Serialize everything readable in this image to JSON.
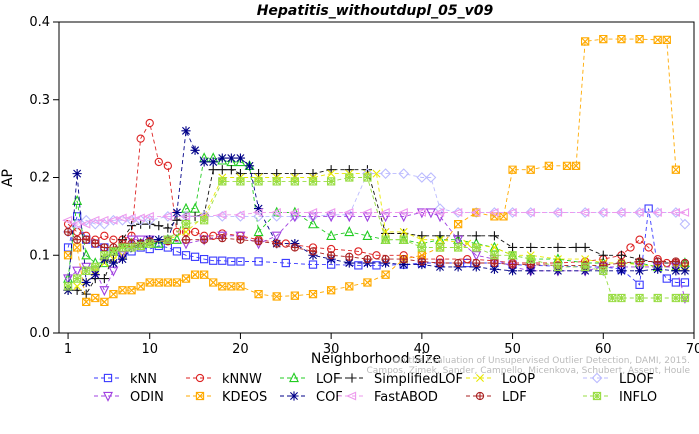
{
  "chart_data": {
    "type": "line",
    "title": "Hepatitis_withoutdupl_05_v09",
    "xlabel": "Neighborhood size",
    "ylabel": "AP",
    "xlim": [
      0,
      70
    ],
    "ylim": [
      0.0,
      0.4
    ],
    "xticks": [
      1,
      10,
      20,
      30,
      40,
      50,
      60,
      70
    ],
    "yticks": [
      0.0,
      0.1,
      0.2,
      0.3,
      0.4
    ],
    "grid": false,
    "legend_position": "bottom",
    "watermark": [
      "Campos, Zimek, Sander, Campello, Micenkova, Schubert, Assent, Houle",
      "On the Evaluation of Unsupervised Outlier Detection, DAMI, 2015."
    ],
    "series": [
      {
        "name": "kNN",
        "color": "#3a3aff",
        "marker": "square",
        "x": [
          1,
          2,
          3,
          4,
          5,
          6,
          7,
          8,
          9,
          10,
          11,
          12,
          13,
          14,
          15,
          16,
          17,
          18,
          19,
          20,
          22,
          25,
          28,
          30,
          33,
          35,
          38,
          40,
          42,
          45,
          48,
          50,
          52,
          55,
          58,
          60,
          62,
          64,
          65,
          66,
          67,
          68,
          69
        ],
        "y": [
          0.11,
          0.15,
          0.12,
          0.115,
          0.11,
          0.105,
          0.1,
          0.105,
          0.11,
          0.108,
          0.112,
          0.11,
          0.105,
          0.1,
          0.098,
          0.095,
          0.093,
          0.093,
          0.092,
          0.092,
          0.092,
          0.09,
          0.088,
          0.088,
          0.087,
          0.087,
          0.088,
          0.09,
          0.09,
          0.09,
          0.09,
          0.088,
          0.087,
          0.086,
          0.085,
          0.085,
          0.082,
          0.062,
          0.16,
          0.085,
          0.07,
          0.065,
          0.065
        ]
      },
      {
        "name": "kNNW",
        "color": "#dd2222",
        "marker": "circle",
        "x": [
          1,
          2,
          3,
          4,
          5,
          6,
          7,
          8,
          9,
          10,
          11,
          12,
          13,
          14,
          15,
          16,
          17,
          18,
          20,
          22,
          25,
          28,
          30,
          33,
          35,
          38,
          40,
          42,
          45,
          48,
          50,
          52,
          55,
          58,
          60,
          62,
          63,
          64,
          65,
          66,
          67,
          68,
          69
        ],
        "y": [
          0.14,
          0.13,
          0.125,
          0.12,
          0.125,
          0.12,
          0.12,
          0.125,
          0.25,
          0.27,
          0.22,
          0.215,
          0.13,
          0.13,
          0.13,
          0.125,
          0.125,
          0.128,
          0.125,
          0.12,
          0.115,
          0.11,
          0.108,
          0.105,
          0.1,
          0.1,
          0.095,
          0.095,
          0.095,
          0.093,
          0.09,
          0.09,
          0.09,
          0.092,
          0.095,
          0.1,
          0.11,
          0.12,
          0.11,
          0.095,
          0.09,
          0.09,
          0.09
        ]
      },
      {
        "name": "LOF",
        "color": "#22cc22",
        "marker": "triangle-up",
        "x": [
          1,
          2,
          3,
          4,
          5,
          6,
          7,
          8,
          9,
          10,
          11,
          12,
          13,
          14,
          15,
          16,
          17,
          18,
          19,
          20,
          21,
          22,
          24,
          26,
          28,
          30,
          32,
          34,
          36,
          38,
          40,
          42,
          44,
          46,
          48,
          50,
          52,
          55,
          58,
          60,
          62,
          64,
          66,
          68,
          69
        ],
        "y": [
          0.07,
          0.17,
          0.1,
          0.09,
          0.09,
          0.105,
          0.11,
          0.115,
          0.115,
          0.115,
          0.115,
          0.12,
          0.12,
          0.16,
          0.16,
          0.225,
          0.225,
          0.222,
          0.22,
          0.22,
          0.215,
          0.13,
          0.155,
          0.155,
          0.14,
          0.125,
          0.13,
          0.125,
          0.12,
          0.12,
          0.115,
          0.12,
          0.12,
          0.115,
          0.11,
          0.1,
          0.095,
          0.095,
          0.09,
          0.09,
          0.09,
          0.09,
          0.085,
          0.085,
          0.09
        ]
      },
      {
        "name": "SimplifiedLOF",
        "color": "#111111",
        "marker": "plus",
        "x": [
          1,
          2,
          3,
          4,
          5,
          6,
          7,
          8,
          9,
          10,
          11,
          12,
          13,
          14,
          15,
          16,
          17,
          18,
          19,
          20,
          22,
          24,
          26,
          28,
          30,
          32,
          34,
          36,
          38,
          40,
          42,
          44,
          46,
          48,
          50,
          52,
          55,
          57,
          58,
          60,
          62,
          64,
          66,
          68
        ],
        "y": [
          0.055,
          0.055,
          0.05,
          0.07,
          0.07,
          0.1,
          0.12,
          0.138,
          0.14,
          0.14,
          0.138,
          0.135,
          0.145,
          0.15,
          0.15,
          0.152,
          0.21,
          0.21,
          0.21,
          0.205,
          0.205,
          0.205,
          0.205,
          0.205,
          0.21,
          0.21,
          0.21,
          0.128,
          0.128,
          0.125,
          0.125,
          0.125,
          0.125,
          0.125,
          0.11,
          0.11,
          0.11,
          0.11,
          0.11,
          0.1,
          0.1,
          0.095,
          0.09,
          0.09
        ]
      },
      {
        "name": "LoOP",
        "color": "#e8e800",
        "marker": "x",
        "x": [
          1,
          2,
          3,
          4,
          5,
          6,
          7,
          8,
          9,
          10,
          12,
          14,
          16,
          18,
          20,
          22,
          24,
          26,
          28,
          30,
          32,
          34,
          35,
          36,
          38,
          40,
          42,
          45,
          48,
          50,
          52,
          55,
          58,
          60,
          62,
          64,
          66,
          68,
          69
        ],
        "y": [
          0.055,
          0.06,
          0.065,
          0.08,
          0.09,
          0.095,
          0.1,
          0.11,
          0.115,
          0.115,
          0.12,
          0.13,
          0.15,
          0.2,
          0.2,
          0.2,
          0.2,
          0.2,
          0.2,
          0.205,
          0.205,
          0.205,
          0.205,
          0.13,
          0.13,
          0.12,
          0.12,
          0.115,
          0.11,
          0.1,
          0.1,
          0.095,
          0.095,
          0.09,
          0.09,
          0.088,
          0.085,
          0.085,
          0.085
        ]
      },
      {
        "name": "LDOF",
        "color": "#bbbbff",
        "marker": "diamond",
        "x": [
          1,
          2,
          3,
          4,
          5,
          6,
          7,
          8,
          9,
          10,
          12,
          14,
          16,
          18,
          20,
          22,
          24,
          26,
          28,
          30,
          32,
          34,
          36,
          38,
          40,
          41,
          42,
          44,
          46,
          48,
          50,
          52,
          55,
          58,
          60,
          62,
          64,
          66,
          68,
          69
        ],
        "y": [
          0.13,
          0.14,
          0.145,
          0.14,
          0.14,
          0.145,
          0.145,
          0.145,
          0.145,
          0.145,
          0.15,
          0.15,
          0.15,
          0.15,
          0.15,
          0.15,
          0.15,
          0.15,
          0.15,
          0.152,
          0.152,
          0.205,
          0.205,
          0.205,
          0.2,
          0.2,
          0.16,
          0.155,
          0.155,
          0.155,
          0.155,
          0.155,
          0.155,
          0.155,
          0.155,
          0.155,
          0.155,
          0.155,
          0.155,
          0.14
        ]
      },
      {
        "name": "ODIN",
        "color": "#a040e0",
        "marker": "triangle-down",
        "x": [
          1,
          2,
          3,
          4,
          5,
          6,
          7,
          8,
          9,
          10,
          12,
          14,
          16,
          18,
          20,
          22,
          24,
          26,
          28,
          30,
          32,
          34,
          36,
          38,
          40,
          41,
          42,
          44,
          46,
          48,
          50,
          52,
          55,
          58,
          60,
          62,
          64,
          66,
          68,
          69
        ],
        "y": [
          0.07,
          0.08,
          0.085,
          0.08,
          0.055,
          0.08,
          0.1,
          0.12,
          0.12,
          0.12,
          0.12,
          0.115,
          0.12,
          0.125,
          0.125,
          0.115,
          0.125,
          0.15,
          0.15,
          0.15,
          0.15,
          0.15,
          0.15,
          0.15,
          0.155,
          0.155,
          0.15,
          0.12,
          0.1,
          0.095,
          0.085,
          0.08,
          0.08,
          0.08,
          0.085,
          0.085,
          0.085,
          0.085,
          0.085,
          0.045
        ]
      },
      {
        "name": "KDEOS",
        "color": "#ffaa00",
        "marker": "square-x",
        "x": [
          1,
          2,
          3,
          4,
          5,
          6,
          7,
          8,
          9,
          10,
          11,
          12,
          13,
          14,
          15,
          16,
          17,
          18,
          19,
          20,
          22,
          24,
          26,
          28,
          30,
          32,
          34,
          36,
          38,
          40,
          42,
          44,
          46,
          48,
          49,
          50,
          52,
          54,
          56,
          57,
          58,
          60,
          62,
          64,
          66,
          67,
          68
        ],
        "y": [
          0.1,
          0.11,
          0.04,
          0.045,
          0.04,
          0.05,
          0.055,
          0.055,
          0.06,
          0.065,
          0.065,
          0.065,
          0.065,
          0.07,
          0.075,
          0.075,
          0.065,
          0.06,
          0.06,
          0.06,
          0.05,
          0.047,
          0.048,
          0.05,
          0.055,
          0.06,
          0.065,
          0.075,
          0.095,
          0.1,
          0.11,
          0.14,
          0.155,
          0.15,
          0.15,
          0.21,
          0.21,
          0.215,
          0.215,
          0.215,
          0.375,
          0.378,
          0.378,
          0.378,
          0.377,
          0.377,
          0.21
        ]
      },
      {
        "name": "COF",
        "color": "#000088",
        "marker": "asterisk",
        "x": [
          1,
          2,
          3,
          4,
          5,
          6,
          7,
          8,
          9,
          10,
          11,
          12,
          13,
          14,
          15,
          16,
          17,
          18,
          19,
          20,
          21,
          22,
          24,
          26,
          28,
          30,
          32,
          34,
          36,
          38,
          40,
          42,
          44,
          46,
          48,
          50,
          52,
          55,
          58,
          60,
          62,
          64,
          66,
          68,
          69
        ],
        "y": [
          0.055,
          0.205,
          0.065,
          0.075,
          0.095,
          0.09,
          0.095,
          0.11,
          0.115,
          0.12,
          0.12,
          0.12,
          0.155,
          0.26,
          0.235,
          0.22,
          0.22,
          0.225,
          0.225,
          0.225,
          0.215,
          0.16,
          0.115,
          0.115,
          0.1,
          0.095,
          0.09,
          0.09,
          0.09,
          0.088,
          0.088,
          0.085,
          0.085,
          0.085,
          0.082,
          0.08,
          0.08,
          0.08,
          0.08,
          0.08,
          0.08,
          0.08,
          0.082,
          0.08,
          0.08
        ]
      },
      {
        "name": "FastABOD",
        "color": "#ee99ee",
        "marker": "left-triangle",
        "x": [
          1,
          2,
          3,
          4,
          5,
          6,
          7,
          8,
          9,
          10,
          12,
          14,
          16,
          18,
          20,
          22,
          24,
          26,
          28,
          30,
          32,
          34,
          36,
          38,
          40,
          42,
          44,
          46,
          48,
          50,
          52,
          55,
          58,
          60,
          62,
          64,
          66,
          68,
          69
        ],
        "y": [
          0.145,
          0.14,
          0.14,
          0.145,
          0.145,
          0.145,
          0.148,
          0.148,
          0.148,
          0.15,
          0.15,
          0.15,
          0.15,
          0.152,
          0.152,
          0.155,
          0.155,
          0.155,
          0.155,
          0.155,
          0.155,
          0.155,
          0.155,
          0.155,
          0.155,
          0.155,
          0.155,
          0.155,
          0.155,
          0.155,
          0.155,
          0.155,
          0.155,
          0.155,
          0.155,
          0.155,
          0.155,
          0.155,
          0.155
        ]
      },
      {
        "name": "LDF",
        "color": "#aa2222",
        "marker": "circle-plus",
        "x": [
          1,
          2,
          3,
          4,
          5,
          6,
          7,
          8,
          9,
          10,
          12,
          14,
          16,
          18,
          20,
          22,
          24,
          26,
          28,
          30,
          32,
          34,
          36,
          38,
          40,
          42,
          44,
          46,
          48,
          50,
          52,
          55,
          58,
          60,
          62,
          64,
          66,
          68,
          69
        ],
        "y": [
          0.13,
          0.12,
          0.12,
          0.115,
          0.11,
          0.11,
          0.115,
          0.115,
          0.115,
          0.118,
          0.118,
          0.12,
          0.12,
          0.122,
          0.12,
          0.118,
          0.115,
          0.11,
          0.105,
          0.1,
          0.098,
          0.095,
          0.095,
          0.095,
          0.092,
          0.09,
          0.09,
          0.09,
          0.09,
          0.088,
          0.088,
          0.087,
          0.087,
          0.087,
          0.09,
          0.092,
          0.092,
          0.092,
          0.09
        ]
      },
      {
        "name": "INFLO",
        "color": "#99dd44",
        "marker": "square-cross",
        "x": [
          1,
          2,
          3,
          4,
          5,
          6,
          7,
          8,
          9,
          10,
          12,
          14,
          16,
          18,
          20,
          22,
          24,
          26,
          28,
          30,
          32,
          34,
          36,
          38,
          40,
          42,
          44,
          46,
          48,
          50,
          52,
          55,
          58,
          60,
          61,
          62,
          64,
          66,
          68,
          69
        ],
        "y": [
          0.06,
          0.07,
          0.08,
          0.085,
          0.1,
          0.105,
          0.11,
          0.11,
          0.112,
          0.115,
          0.12,
          0.14,
          0.145,
          0.195,
          0.195,
          0.195,
          0.195,
          0.195,
          0.195,
          0.195,
          0.2,
          0.2,
          0.12,
          0.12,
          0.11,
          0.11,
          0.11,
          0.11,
          0.1,
          0.1,
          0.095,
          0.085,
          0.085,
          0.08,
          0.045,
          0.045,
          0.045,
          0.045,
          0.045,
          0.045
        ]
      }
    ]
  }
}
